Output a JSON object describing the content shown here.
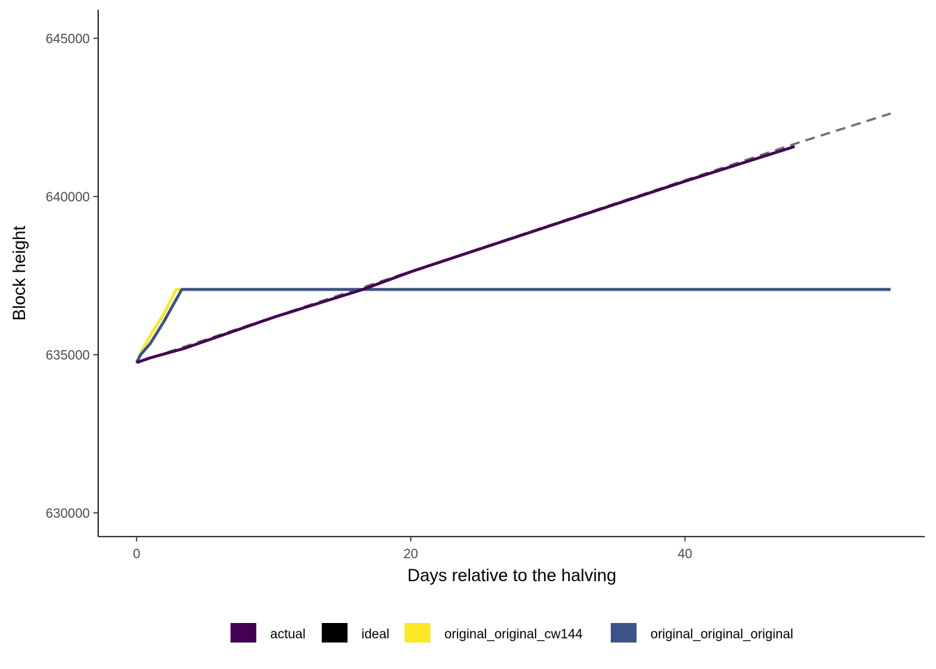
{
  "chart_data": {
    "type": "line",
    "title": "",
    "xlabel": "Days relative to the halving",
    "ylabel": "Block height",
    "xlim": [
      -2.8,
      57.5
    ],
    "ylim": [
      629250,
      645900
    ],
    "x_ticks": [
      0,
      20,
      40
    ],
    "x_tick_labels": [
      "0",
      "20",
      "40"
    ],
    "y_ticks": [
      630000,
      635000,
      640000,
      645000
    ],
    "y_tick_labels": [
      "630000",
      "635000",
      "640000",
      "645000"
    ],
    "grid": false,
    "legend_position": "bottom",
    "series": [
      {
        "name": "ideal",
        "color": "#707070",
        "dashed": true,
        "points": [
          [
            0,
            634750
          ],
          [
            10,
            636190
          ],
          [
            20,
            637630
          ],
          [
            30,
            639070
          ],
          [
            40,
            640510
          ],
          [
            48,
            641660
          ],
          [
            55,
            642620
          ]
        ]
      },
      {
        "name": "original_original_cw144",
        "color": "#FDE725",
        "dashed": false,
        "points": [
          [
            0,
            634750
          ],
          [
            0.3,
            635050
          ],
          [
            1.0,
            635600
          ],
          [
            2.0,
            636300
          ],
          [
            2.9,
            637060
          ],
          [
            3.3,
            637060
          ],
          [
            55,
            637060
          ]
        ]
      },
      {
        "name": "original_original_original",
        "color": "#3B528B",
        "dashed": false,
        "points": [
          [
            0,
            634750
          ],
          [
            0.3,
            635000
          ],
          [
            1.0,
            635350
          ],
          [
            2.0,
            636050
          ],
          [
            2.7,
            636600
          ],
          [
            3.3,
            637060
          ],
          [
            55,
            637060
          ]
        ]
      },
      {
        "name": "actual",
        "color": "#440154",
        "dashed": false,
        "points": [
          [
            0,
            634750
          ],
          [
            1.0,
            634900
          ],
          [
            3.5,
            635200
          ],
          [
            10,
            636180
          ],
          [
            16.5,
            637060
          ],
          [
            20,
            637620
          ],
          [
            30,
            639050
          ],
          [
            40,
            640480
          ],
          [
            48,
            641580
          ]
        ]
      }
    ],
    "legend": [
      {
        "name": "actual",
        "color": "#440154"
      },
      {
        "name": "ideal",
        "color": "#000000"
      },
      {
        "name": "original_original_cw144",
        "color": "#FDE725"
      },
      {
        "name": "original_original_original",
        "color": "#3B528B"
      }
    ]
  }
}
